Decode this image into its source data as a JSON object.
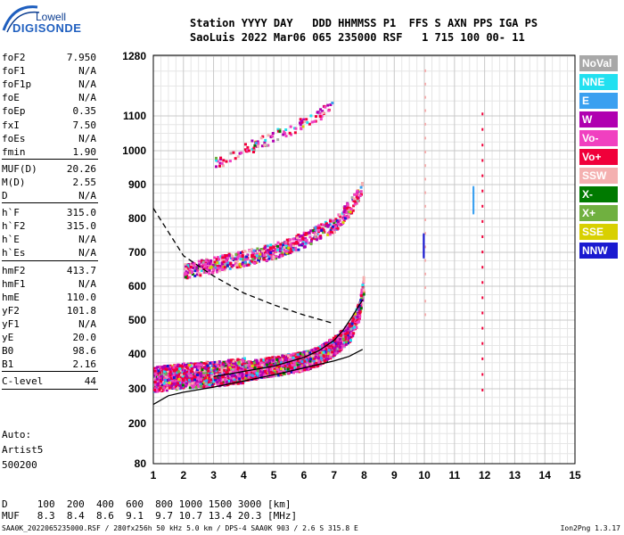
{
  "logo": {
    "top": "Lowell",
    "main": "DIGISONDE"
  },
  "header": {
    "line1": "Station YYYY DAY   DDD HHMMSS P1  FFS S AXN PPS IGA PS",
    "line2": "SaoLuis 2022 Mar06 065 235000 RSF   1 715 100 00- 11"
  },
  "params": [
    {
      "k": "foF2",
      "v": "7.950"
    },
    {
      "k": "foF1",
      "v": "N/A"
    },
    {
      "k": "foF1p",
      "v": "N/A"
    },
    {
      "k": "foE",
      "v": "N/A"
    },
    {
      "k": "foEp",
      "v": "0.35"
    },
    {
      "k": "fxI",
      "v": "7.50"
    },
    {
      "k": "foEs",
      "v": "N/A"
    },
    {
      "k": "fmin",
      "v": "1.90"
    },
    {
      "k": "MUF(D)",
      "v": "20.26"
    },
    {
      "k": "M(D)",
      "v": "2.55"
    },
    {
      "k": "D",
      "v": "N/A"
    },
    {
      "k": "h`F",
      "v": "315.0"
    },
    {
      "k": "h`F2",
      "v": "315.0"
    },
    {
      "k": "h`E",
      "v": "N/A"
    },
    {
      "k": "h`Es",
      "v": "N/A"
    },
    {
      "k": "hmF2",
      "v": "413.7"
    },
    {
      "k": "hmF1",
      "v": "N/A"
    },
    {
      "k": "hmE",
      "v": "110.0"
    },
    {
      "k": "yF2",
      "v": "101.8"
    },
    {
      "k": "yF1",
      "v": "N/A"
    },
    {
      "k": "yE",
      "v": "20.0"
    },
    {
      "k": "B0",
      "v": "98.6"
    },
    {
      "k": "B1",
      "v": "2.16"
    },
    {
      "k": "C-level",
      "v": "44"
    }
  ],
  "auto": [
    "Auto:",
    "Artist5",
    "500200"
  ],
  "bottom_table": {
    "row1": "D     100  200  400  600  800 1000 1500 3000 [km]",
    "row2": "MUF   8.3  8.4  8.6  9.1  9.7 10.7 13.4 20.3 [MHz]"
  },
  "footer": {
    "left": "SAA0K_2022065235000.RSF / 280fx256h 50 kHz 5.0 km / DPS-4 SAA0K 903 / 2.6 S 315.8 E",
    "right": "Ion2Png 1.3.17"
  },
  "legend": [
    {
      "label": "NoVal",
      "color": "#a8a8a8"
    },
    {
      "label": "NNE",
      "color": "#22e0f0"
    },
    {
      "label": "E",
      "color": "#3aa0f0"
    },
    {
      "label": "W",
      "color": "#b000b0"
    },
    {
      "label": "Vo-",
      "color": "#f040c0"
    },
    {
      "label": "Vo+",
      "color": "#f0003a"
    },
    {
      "label": "SSW",
      "color": "#f4b0b0"
    },
    {
      "label": "X-",
      "color": "#007a00"
    },
    {
      "label": "X+",
      "color": "#70b040"
    },
    {
      "label": "SSE",
      "color": "#d8d000"
    },
    {
      "label": "NNW",
      "color": "#1a1ad0"
    }
  ],
  "chart_data": {
    "type": "scatter",
    "xlim": [
      1,
      15
    ],
    "ylim": [
      80,
      1280
    ],
    "x_ticks": [
      1,
      2,
      3,
      4,
      5,
      6,
      7,
      8,
      9,
      10,
      11,
      12,
      13,
      14,
      15
    ],
    "y_ticks": [
      80,
      200,
      300,
      400,
      500,
      600,
      700,
      800,
      900,
      1000,
      1100,
      1280
    ],
    "grid": true,
    "y_scale": "ionogram",
    "curves": [
      {
        "name": "profile_solid",
        "style": "solid",
        "x": [
          1.0,
          1.5,
          2.0,
          3.0,
          4.0,
          5.0,
          6.0,
          7.0,
          7.5,
          7.95
        ],
        "y": [
          255,
          280,
          290,
          305,
          322,
          340,
          360,
          380,
          393,
          413.7
        ]
      },
      {
        "name": "profile_upper",
        "style": "solid",
        "x": [
          3.0,
          4.0,
          5.0,
          6.0,
          6.5,
          7.0,
          7.3,
          7.6,
          7.95
        ],
        "y": [
          335,
          350,
          365,
          390,
          410,
          440,
          470,
          510,
          560
        ]
      },
      {
        "name": "muf_dashed",
        "style": "dashed",
        "x": [
          1.0,
          1.5,
          2.0,
          3.0,
          4.0,
          5.0,
          6.0,
          7.0
        ],
        "y": [
          830,
          760,
          690,
          630,
          580,
          545,
          515,
          490
        ]
      }
    ],
    "traces": [
      {
        "name": "F2 o-trace",
        "x": [
          1.0,
          2.0,
          3.0,
          4.0,
          5.0,
          6.0,
          6.5,
          7.0,
          7.5,
          7.8,
          7.95
        ],
        "y": [
          320,
          330,
          335,
          345,
          360,
          375,
          390,
          420,
          460,
          520,
          600
        ]
      },
      {
        "name": "F2 2-hop",
        "x": [
          2.0,
          3.0,
          4.0,
          5.0,
          6.0,
          7.0,
          7.5,
          7.9
        ],
        "y": [
          640,
          660,
          680,
          700,
          735,
          780,
          830,
          880
        ]
      },
      {
        "name": "F2 3-hop",
        "x": [
          3.0,
          4.0,
          5.0,
          6.0,
          7.0
        ],
        "y": [
          960,
          1000,
          1040,
          1080,
          1130
        ]
      }
    ]
  }
}
